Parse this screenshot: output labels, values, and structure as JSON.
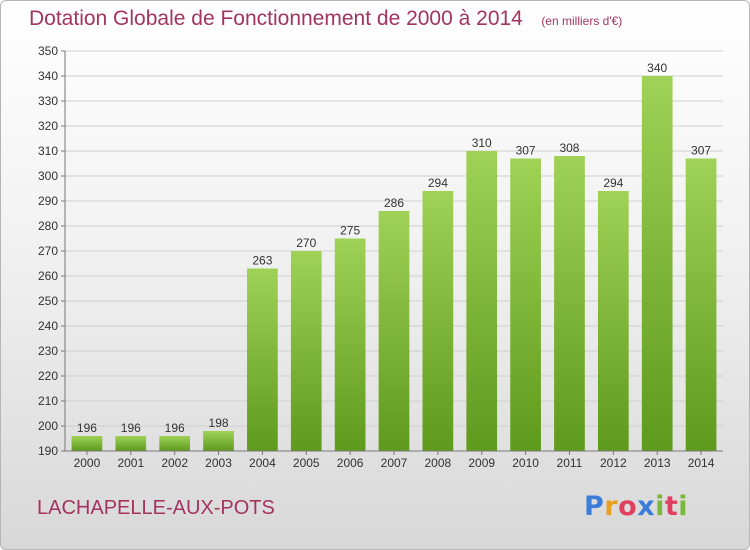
{
  "title": "Dotation Globale de Fonctionnement de 2000 à 2014",
  "unit_label": "(en milliers d'€)",
  "commune": "LACHAPELLE-AUX-POTS",
  "logo": {
    "letters": [
      {
        "ch": "P",
        "color": "#3b7dd8"
      },
      {
        "ch": "r",
        "color": "#e8a020"
      },
      {
        "ch": "o",
        "color": "#e04060"
      },
      {
        "ch": "x",
        "color": "#3b7dd8"
      },
      {
        "ch": "i",
        "color": "#7ab83a"
      },
      {
        "ch": "t",
        "color": "#e04060"
      },
      {
        "ch": "i",
        "color": "#7ab83a"
      }
    ]
  },
  "colors": {
    "title": "#a3345f",
    "bar_top": "#9fd256",
    "bar_bottom": "#5e9a1c",
    "grid": "#cfcfcf"
  },
  "chart_data": {
    "type": "bar",
    "categories": [
      "2000",
      "2001",
      "2002",
      "2003",
      "2004",
      "2005",
      "2006",
      "2007",
      "2008",
      "2009",
      "2010",
      "2011",
      "2012",
      "2013",
      "2014"
    ],
    "values": [
      196,
      196,
      196,
      198,
      263,
      270,
      275,
      286,
      294,
      310,
      307,
      308,
      294,
      340,
      307
    ],
    "ylim": [
      190,
      350
    ],
    "yticks": [
      190,
      200,
      210,
      220,
      230,
      240,
      250,
      260,
      270,
      280,
      290,
      300,
      310,
      320,
      330,
      340,
      350
    ],
    "grid": true,
    "xlabel": "",
    "ylabel": ""
  }
}
